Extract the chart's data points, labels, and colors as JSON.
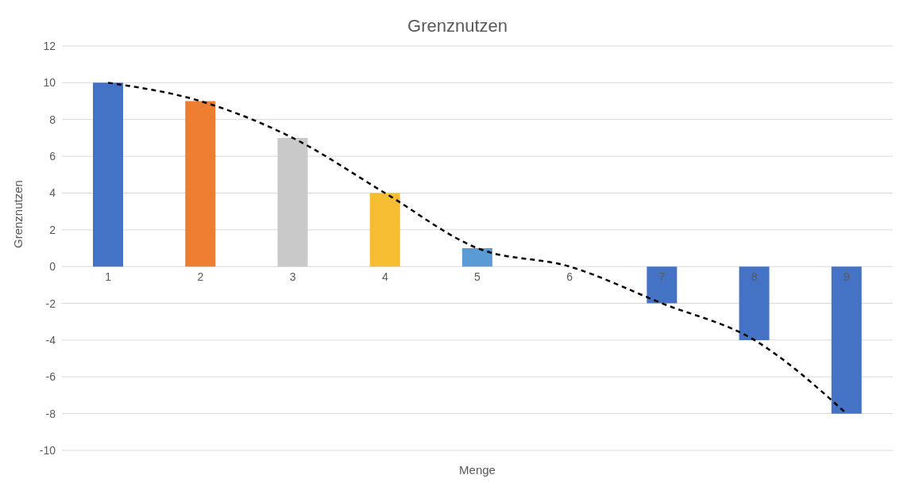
{
  "chart_data": {
    "type": "bar",
    "title": "Grenznutzen",
    "xlabel": "Menge",
    "ylabel": "Grenznutzen",
    "categories": [
      "1",
      "2",
      "3",
      "4",
      "5",
      "6",
      "7",
      "8",
      "9"
    ],
    "series": [
      {
        "values": [
          10,
          9,
          7,
          4,
          1,
          0,
          -2,
          -4,
          -8
        ],
        "colors": [
          "#4472c4",
          "#ed7d31",
          "#c9c9c9",
          "#f6bd32",
          "#5b9bd5",
          "#70ad47",
          "#4472c4",
          "#4472c4",
          "#4472c4"
        ]
      },
      {
        "type": "line",
        "values": [
          10,
          9,
          7,
          4,
          1,
          0,
          -2,
          -4,
          -8
        ],
        "color": "#000000",
        "line_style": "dashed",
        "marker": "none"
      }
    ],
    "ylim": [
      -10,
      12
    ],
    "yticks": [
      -10,
      -8,
      -6,
      -4,
      -2,
      0,
      2,
      4,
      6,
      8,
      10,
      12
    ],
    "grid": "y",
    "legend": false
  }
}
